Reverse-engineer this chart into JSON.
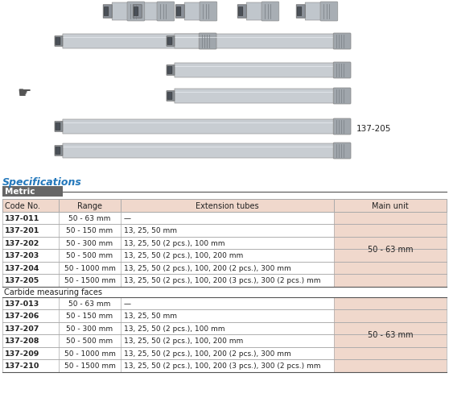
{
  "title": "Specifications",
  "metric_label": "Metric",
  "header": [
    "Code No.",
    "Range",
    "Extension tubes",
    "Main unit"
  ],
  "section1_label": "Carbide measuring faces",
  "rows_metric": [
    [
      "137-011",
      "50 - 63 mm",
      "—"
    ],
    [
      "137-201",
      "50 - 150 mm",
      "13, 25, 50 mm"
    ],
    [
      "137-202",
      "50 - 300 mm",
      "13, 25, 50 (2 pcs.), 100 mm"
    ],
    [
      "137-203",
      "50 - 500 mm",
      "13, 25, 50 (2 pcs.), 100, 200 mm"
    ],
    [
      "137-204",
      "50 - 1000 mm",
      "13, 25, 50 (2 pcs.), 100, 200 (2 pcs.), 300 mm"
    ],
    [
      "137-205",
      "50 - 1500 mm",
      "13, 25, 50 (2 pcs.), 100, 200 (3 pcs.), 300 (2 pcs.) mm"
    ]
  ],
  "main_unit_metric": "50 - 63 mm",
  "rows_carbide": [
    [
      "137-013",
      "50 - 63 mm",
      "—"
    ],
    [
      "137-206",
      "50 - 150 mm",
      "13, 25, 50 mm"
    ],
    [
      "137-207",
      "50 - 300 mm",
      "13, 25, 50 (2 pcs.), 100 mm"
    ],
    [
      "137-208",
      "50 - 500 mm",
      "13, 25, 50 (2 pcs.), 100, 200 mm"
    ],
    [
      "137-209",
      "50 - 1000 mm",
      "13, 25, 50 (2 pcs.), 100, 200 (2 pcs.), 300 mm"
    ],
    [
      "137-210",
      "50 - 1500 mm",
      "13, 25, 50 (2 pcs.), 100, 200 (3 pcs.), 300 (2 pcs.) mm"
    ]
  ],
  "main_unit_carbide": "50 - 63 mm",
  "bg_white": "#ffffff",
  "bg_pink": "#f0d8cc",
  "bg_metric_bar": "#666666",
  "title_color": "#2277bb",
  "border_color": "#aaaaaa",
  "dark_border": "#555555",
  "text_dark": "#222222",
  "image_label": "137-205",
  "tool_body": "#c8cdd2",
  "tool_end_left": "#888e94",
  "tool_end_right": "#a0a6ac",
  "tool_rod": "#d5d9de",
  "fig_width": 5.58,
  "fig_height": 5.1
}
